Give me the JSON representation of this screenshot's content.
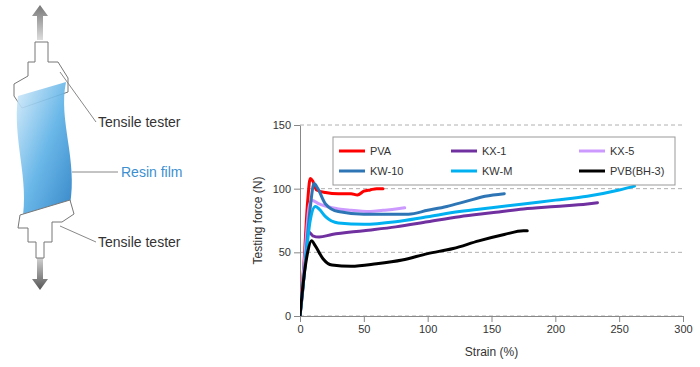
{
  "illustration": {
    "top_label": "Tensile tester",
    "film_label": "Resin film",
    "bottom_label": "Tensile tester"
  },
  "chart_data": {
    "type": "line",
    "x_label": "Strain (%)",
    "y_label": "Testing force (N)",
    "xlim": [
      0,
      300
    ],
    "xticks": [
      0,
      50,
      100,
      150,
      200,
      250,
      300
    ],
    "ylim": [
      0,
      150
    ],
    "yticks": [
      0,
      50,
      100,
      150
    ],
    "grid": true,
    "legend": "top",
    "series": [
      {
        "name": "PVA",
        "color": "#ff0000",
        "x": [
          0,
          3,
          6,
          8,
          10,
          13,
          20,
          30,
          40,
          45,
          50,
          55,
          60,
          65
        ],
        "values": [
          0,
          40,
          90,
          108,
          106,
          99,
          97,
          96,
          96,
          95,
          98,
          99,
          100,
          100
        ]
      },
      {
        "name": "KX-1",
        "color": "#7030a0",
        "x": [
          0,
          3,
          5,
          7,
          10,
          15,
          25,
          50,
          75,
          100,
          125,
          150,
          175,
          200,
          225,
          233
        ],
        "values": [
          0,
          30,
          60,
          66,
          63,
          62,
          64,
          67,
          70,
          74,
          78,
          81,
          84,
          86,
          88,
          89
        ]
      },
      {
        "name": "KX-5",
        "color": "#cc99ff",
        "x": [
          0,
          4,
          7,
          9,
          15,
          25,
          40,
          55,
          65,
          75,
          82
        ],
        "values": [
          0,
          50,
          85,
          91,
          88,
          85,
          83,
          82,
          83,
          84,
          85
        ]
      },
      {
        "name": "KW-10",
        "color": "#2e75b6",
        "x": [
          0,
          4,
          8,
          11,
          14,
          20,
          30,
          50,
          70,
          85,
          100,
          115,
          130,
          145,
          160
        ],
        "values": [
          0,
          40,
          85,
          104,
          100,
          88,
          82,
          80,
          80,
          80,
          83,
          86,
          90,
          94,
          96
        ]
      },
      {
        "name": "KW-M",
        "color": "#00b0f0",
        "x": [
          0,
          4,
          8,
          12,
          15,
          20,
          30,
          50,
          75,
          100,
          125,
          150,
          175,
          200,
          225,
          250,
          262
        ],
        "values": [
          0,
          40,
          75,
          86,
          84,
          78,
          73,
          72,
          74,
          78,
          82,
          85,
          88,
          91,
          94,
          99,
          102
        ]
      },
      {
        "name": "PVB(BH-3)",
        "color": "#000000",
        "x": [
          0,
          3,
          6,
          9,
          12,
          18,
          25,
          40,
          60,
          80,
          100,
          120,
          140,
          160,
          175,
          178
        ],
        "values": [
          0,
          30,
          50,
          59,
          55,
          45,
          40,
          39,
          41,
          44,
          49,
          53,
          59,
          64,
          67,
          67
        ]
      }
    ]
  }
}
